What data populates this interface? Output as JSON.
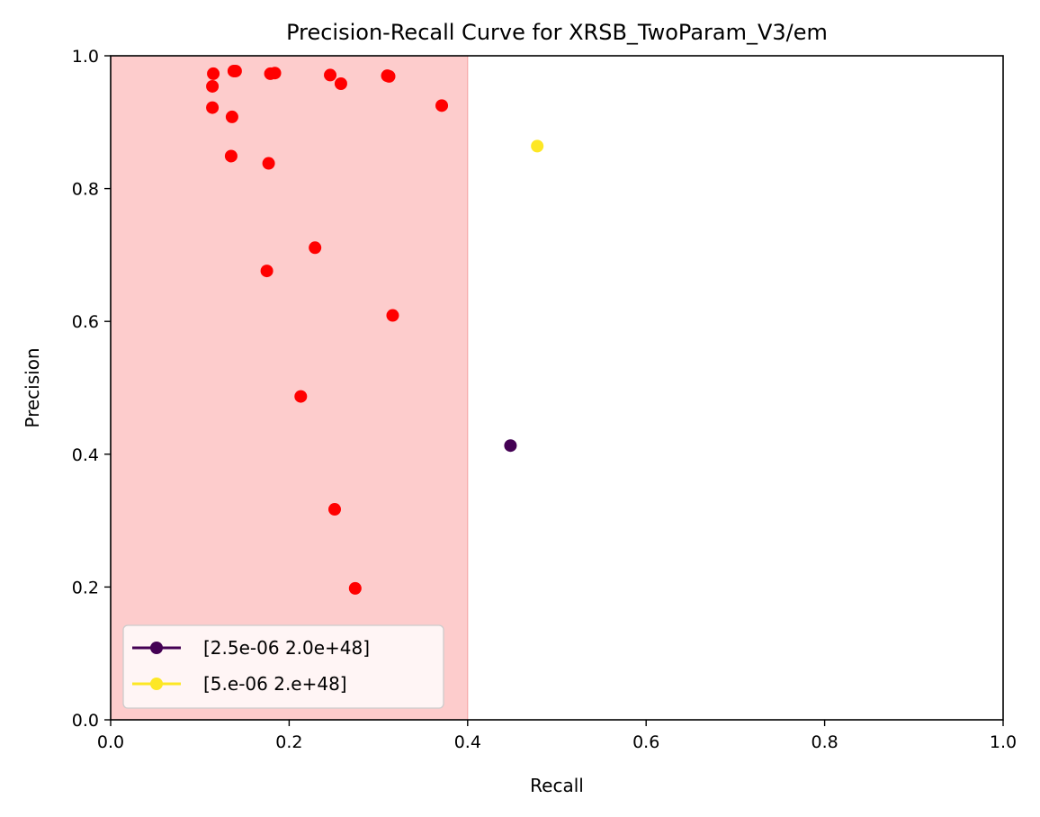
{
  "chart_data": {
    "type": "scatter",
    "title": "Precision-Recall Curve for XRSB_TwoParam_V3/em",
    "xlabel": "Recall",
    "ylabel": "Precision",
    "xlim": [
      0.0,
      1.0
    ],
    "ylim": [
      0.0,
      1.0
    ],
    "xticks": [
      "0.0",
      "0.2",
      "0.4",
      "0.6",
      "0.8",
      "1.0"
    ],
    "yticks": [
      "0.0",
      "0.2",
      "0.4",
      "0.6",
      "0.8",
      "1.0"
    ],
    "grid": false,
    "shaded_region": {
      "x_from": 0.0,
      "x_to": 0.4,
      "color": "#fdcccc"
    },
    "background_points": {
      "color": "#ff0000",
      "points": [
        [
          0.115,
          0.973
        ],
        [
          0.114,
          0.954
        ],
        [
          0.114,
          0.922
        ],
        [
          0.138,
          0.977
        ],
        [
          0.14,
          0.977
        ],
        [
          0.136,
          0.908
        ],
        [
          0.135,
          0.849
        ],
        [
          0.179,
          0.973
        ],
        [
          0.184,
          0.974
        ],
        [
          0.177,
          0.838
        ],
        [
          0.246,
          0.971
        ],
        [
          0.258,
          0.958
        ],
        [
          0.31,
          0.97
        ],
        [
          0.312,
          0.969
        ],
        [
          0.371,
          0.925
        ],
        [
          0.229,
          0.711
        ],
        [
          0.175,
          0.676
        ],
        [
          0.316,
          0.609
        ],
        [
          0.213,
          0.487
        ],
        [
          0.251,
          0.317
        ],
        [
          0.274,
          0.198
        ]
      ]
    },
    "series": [
      {
        "name": "[2.5e-06 2.0e+48]",
        "color": "#440154",
        "x": [
          0.448
        ],
        "y": [
          0.413
        ]
      },
      {
        "name": "[5.e-06 2.e+48]",
        "color": "#fde725",
        "x": [
          0.478
        ],
        "y": [
          0.864
        ]
      }
    ],
    "legend_position": "lower-left"
  }
}
